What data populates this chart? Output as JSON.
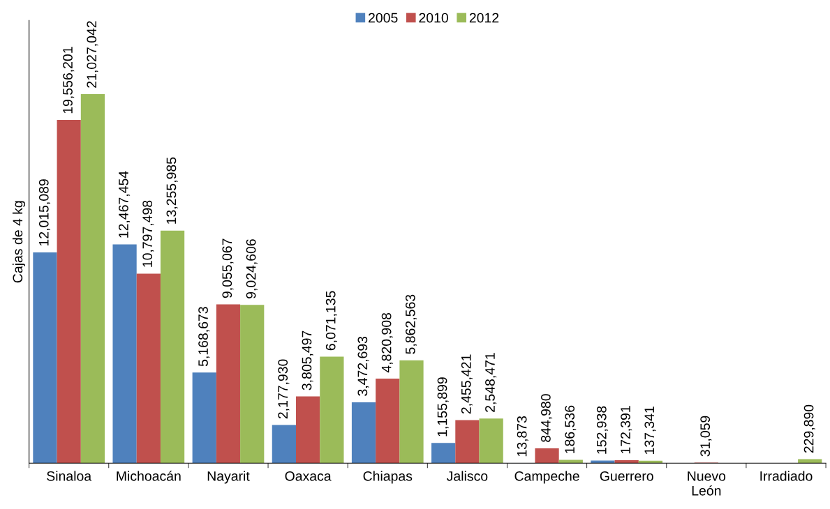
{
  "chart_data": {
    "type": "bar",
    "ylabel": "Cajas de 4 kg",
    "categories": [
      "Sinaloa",
      "Michoacán",
      "Nayarit",
      "Oaxaca",
      "Chiapas",
      "Jalisco",
      "Campeche",
      "Guerrero",
      "Nuevo\nLeón",
      "Irradiado"
    ],
    "series": [
      {
        "name": "2005",
        "color": "#4f81bd",
        "values": [
          12015089,
          12467454,
          5168673,
          2177930,
          3472693,
          1155899,
          13873,
          152938,
          null,
          null
        ],
        "value_labels": [
          "12,015,089",
          "12,467,454",
          "5,168,673",
          "2,177,930",
          "3,472,693",
          "1,155,899",
          "13,873",
          "152,938",
          null,
          null
        ]
      },
      {
        "name": "2010",
        "color": "#c0504d",
        "values": [
          19556201,
          10797498,
          9055067,
          3805497,
          4820908,
          2455421,
          844980,
          172391,
          31059,
          null
        ],
        "value_labels": [
          "19,556,201",
          "10,797,498",
          "9,055,067",
          "3,805,497",
          "4,820,908",
          "2,455,421",
          "844,980",
          "172,391",
          "31,059",
          null
        ]
      },
      {
        "name": "2012",
        "color": "#9bbb59",
        "values": [
          21027042,
          13255985,
          9024606,
          6071135,
          5862563,
          2548471,
          186536,
          137341,
          null,
          229890
        ],
        "value_labels": [
          "21,027,042",
          "13,255,985",
          "9,024,606",
          "6,071,135",
          "5,862,563",
          "2,548,471",
          "186,536",
          "137,341",
          null,
          "229,890"
        ]
      }
    ],
    "legend": "top",
    "grid": false
  }
}
